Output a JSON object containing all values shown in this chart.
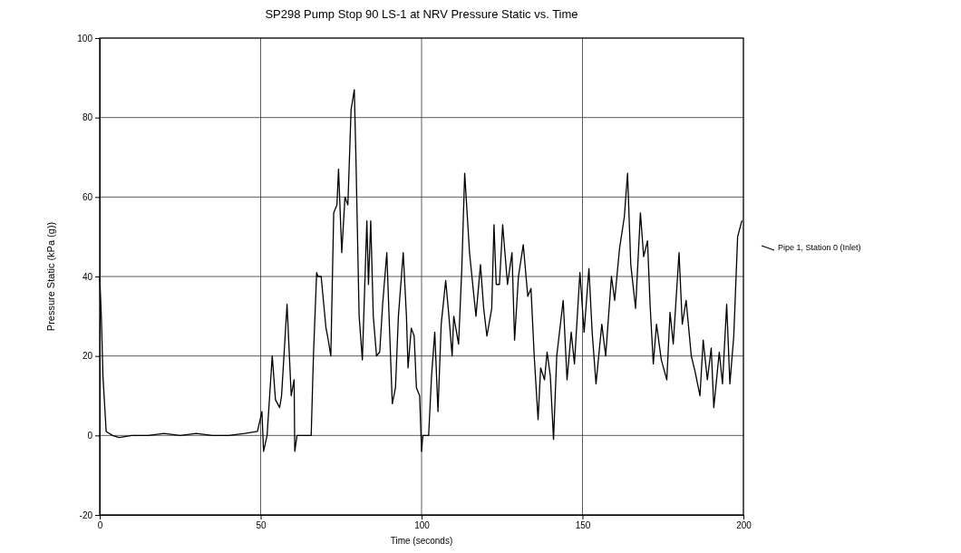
{
  "chart_data": {
    "type": "line",
    "title": "SP298 Pump Stop 90 LS-1 at NRV Pressure Static vs. Time",
    "xlabel": "Time (seconds)",
    "ylabel": "Pressure Static (kPa (g))",
    "xlim": [
      0,
      200
    ],
    "xticks": [
      0,
      50,
      100,
      150,
      200
    ],
    "ylim": [
      -20,
      100
    ],
    "yticks": [
      -20,
      0,
      20,
      40,
      60,
      80,
      100
    ],
    "grid": true,
    "legend": "right",
    "line_style": "solid",
    "marker": "none",
    "series": [
      {
        "name": "Pipe 1, Station 0 (Inlet)",
        "color": "#000000",
        "x": [
          0,
          0.5,
          1,
          2,
          4,
          6,
          10,
          15,
          20,
          25,
          30,
          35,
          40,
          45,
          49,
          50.4,
          50.9,
          52,
          53.6,
          54.6,
          55.9,
          56.5,
          58.2,
          59.5,
          60.4,
          60.6,
          61.3,
          65.7,
          66.4,
          67.4,
          67.8,
          68.8,
          70.3,
          70.8,
          71.8,
          72.7,
          73.7,
          74.2,
          75.2,
          76.2,
          77.1,
          78.1,
          79.1,
          79.6,
          80.6,
          81.6,
          83,
          83.5,
          84.2,
          85,
          86,
          87,
          87.9,
          89.2,
          89.9,
          90.9,
          91.9,
          92.8,
          94.3,
          95.3,
          95.8,
          96.8,
          97.7,
          98.4,
          99.4,
          100,
          100.4,
          102.2,
          103.1,
          104.1,
          105.1,
          106.1,
          107.5,
          108.5,
          109.5,
          110,
          111.5,
          112.5,
          113.4,
          114.9,
          116.9,
          118.3,
          119.3,
          120.3,
          121.8,
          122.5,
          123.2,
          124.2,
          125.2,
          126.7,
          128.1,
          128.9,
          130.1,
          131.6,
          133,
          134,
          135,
          136.2,
          137,
          138.2,
          139,
          140,
          141,
          142,
          144,
          145.2,
          146.5,
          147.5,
          149.2,
          150.5,
          152,
          153,
          154.2,
          156,
          157.2,
          159,
          160,
          161.5,
          163,
          164,
          165,
          166.5,
          168,
          169,
          170.2,
          171,
          172,
          173,
          174.5,
          176.2,
          177.2,
          178.2,
          180,
          181,
          182.2,
          183.8,
          185,
          186.5,
          187.5,
          188.8,
          190,
          190.8,
          192.5,
          193.5,
          194.8,
          195.8,
          197,
          198.2,
          199.5
        ],
        "values": [
          40,
          30,
          15,
          1,
          0,
          -0.5,
          0,
          0,
          0.5,
          0,
          0.5,
          0,
          0,
          0.5,
          1,
          6,
          -4,
          0,
          20,
          9,
          7,
          10,
          33,
          10,
          14,
          -4,
          0,
          0,
          20,
          41,
          40,
          40,
          27,
          25,
          20,
          56,
          58,
          67,
          46,
          60,
          58,
          82,
          87,
          70,
          30,
          19,
          54,
          38,
          54,
          30,
          20,
          21,
          33,
          46,
          30,
          8,
          12,
          30,
          46,
          30,
          17,
          27,
          25,
          12,
          10,
          -4,
          0,
          0,
          15,
          26,
          6,
          28,
          39,
          30,
          20,
          30,
          23,
          42,
          66,
          46,
          30,
          43,
          32,
          25,
          32,
          53,
          38,
          38,
          53,
          38,
          46,
          24,
          40,
          48,
          35,
          37,
          20,
          4,
          17,
          14,
          21,
          15,
          -1,
          20,
          34,
          14,
          26,
          18,
          41,
          26,
          42,
          26,
          13,
          28,
          20,
          40,
          34,
          47,
          55,
          66,
          43,
          32,
          56,
          45,
          49,
          33,
          18,
          28,
          19,
          14,
          31,
          23,
          46,
          28,
          34,
          20,
          16,
          10,
          24,
          14,
          22,
          7,
          21,
          13,
          33,
          13,
          25,
          50,
          54
        ]
      }
    ]
  }
}
